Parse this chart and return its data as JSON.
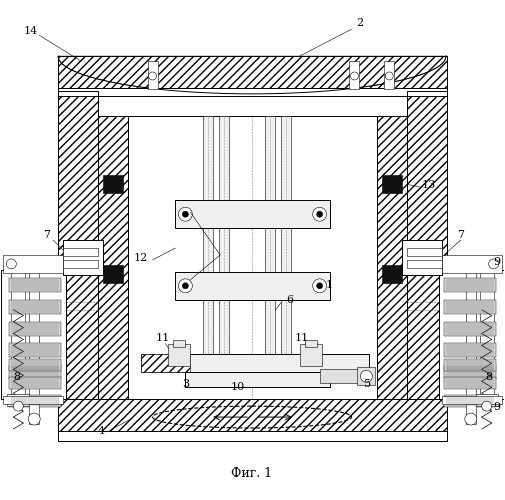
{
  "title": "Фиг. 1",
  "bg": "#ffffff",
  "lw_thin": 0.4,
  "lw_med": 0.7,
  "lw_thick": 1.0,
  "label_fs": 8,
  "fig_w": 5.05,
  "fig_h": 5.0,
  "dpi": 100
}
